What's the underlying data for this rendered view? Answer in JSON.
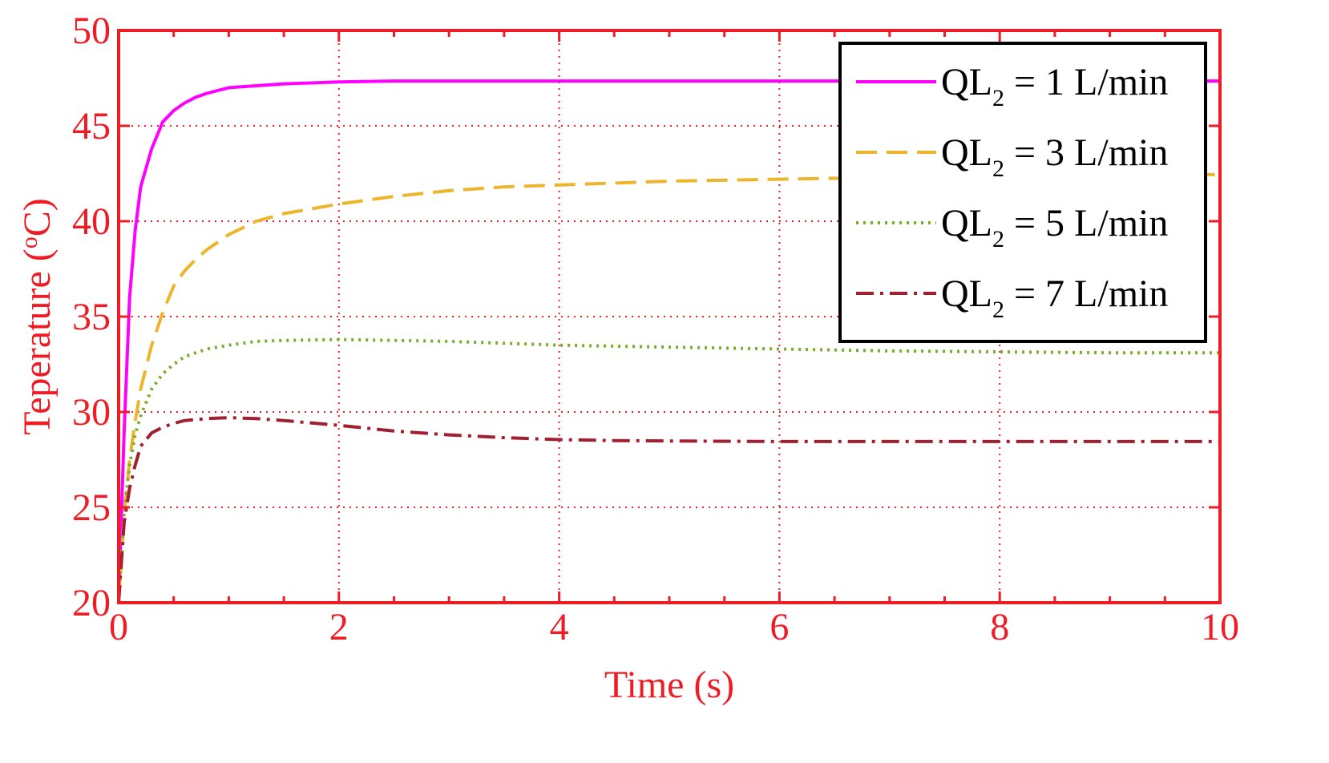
{
  "chart_data": {
    "type": "line",
    "title": "",
    "xlabel": "Time (s)",
    "ylabel": "Teperature (",
    "ylabel_sup": "o",
    "ylabel_suffix": "C)",
    "xlim": [
      0,
      10
    ],
    "ylim": [
      20,
      50
    ],
    "xticks": [
      0,
      2,
      4,
      6,
      8,
      10
    ],
    "xtick_labels": [
      "0",
      "2",
      "4",
      "6",
      "8",
      "10"
    ],
    "yticks": [
      20,
      25,
      30,
      35,
      40,
      45,
      50
    ],
    "ytick_labels": [
      "20",
      "25",
      "30",
      "35",
      "40",
      "45",
      "50"
    ],
    "grid": true,
    "legend_position": "top-right",
    "x": [
      0,
      0.05,
      0.1,
      0.15,
      0.2,
      0.3,
      0.4,
      0.5,
      0.6,
      0.7,
      0.8,
      1.0,
      1.25,
      1.5,
      2.0,
      2.5,
      3.0,
      3.5,
      4.0,
      4.5,
      5.0,
      6.0,
      7.0,
      8.0,
      9.0,
      10.0
    ],
    "series": [
      {
        "name": "QL2 = 1 L/min",
        "label_main": "QL",
        "label_sub": "2",
        "label_rest": " = 1 L/min",
        "color": "#ff00ff",
        "style": "solid",
        "values": [
          20,
          29,
          36,
          39.5,
          41.8,
          43.8,
          45.2,
          45.8,
          46.2,
          46.5,
          46.7,
          47.0,
          47.1,
          47.2,
          47.3,
          47.35,
          47.35,
          47.35,
          47.35,
          47.35,
          47.35,
          47.35,
          47.35,
          47.35,
          47.35,
          47.35
        ]
      },
      {
        "name": "QL2 = 3 L/min",
        "label_main": "QL",
        "label_sub": "2",
        "label_rest": " = 3 L/min",
        "color": "#ecb52c",
        "style": "dashed",
        "values": [
          20,
          24.5,
          27.5,
          29.5,
          31.2,
          33.5,
          35.2,
          36.6,
          37.4,
          38.0,
          38.5,
          39.3,
          40.0,
          40.4,
          40.9,
          41.3,
          41.6,
          41.8,
          41.9,
          42.0,
          42.1,
          42.2,
          42.3,
          42.35,
          42.4,
          42.45
        ]
      },
      {
        "name": "QL2 = 5 L/min",
        "label_main": "QL",
        "label_sub": "2",
        "label_rest": " = 5 L/min",
        "color": "#7aad2a",
        "style": "dotted",
        "values": [
          20,
          24.8,
          27.2,
          28.8,
          29.8,
          31.2,
          32.0,
          32.5,
          32.9,
          33.1,
          33.3,
          33.5,
          33.7,
          33.75,
          33.8,
          33.75,
          33.7,
          33.6,
          33.5,
          33.45,
          33.4,
          33.3,
          33.2,
          33.15,
          33.1,
          33.1
        ]
      },
      {
        "name": "QL2 = 7 L/min",
        "label_main": "QL",
        "label_sub": "2",
        "label_rest": " = 7 L/min",
        "color": "#a02030",
        "style": "dashdot",
        "values": [
          20,
          24.2,
          26.0,
          27.2,
          28.2,
          28.9,
          29.2,
          29.4,
          29.55,
          29.6,
          29.65,
          29.7,
          29.65,
          29.55,
          29.3,
          29.0,
          28.8,
          28.65,
          28.55,
          28.5,
          28.48,
          28.45,
          28.45,
          28.45,
          28.45,
          28.45
        ]
      }
    ],
    "colors": {
      "axes": "#ee1c24",
      "grid": "#ee1c24",
      "legend_border": "#000000"
    }
  }
}
